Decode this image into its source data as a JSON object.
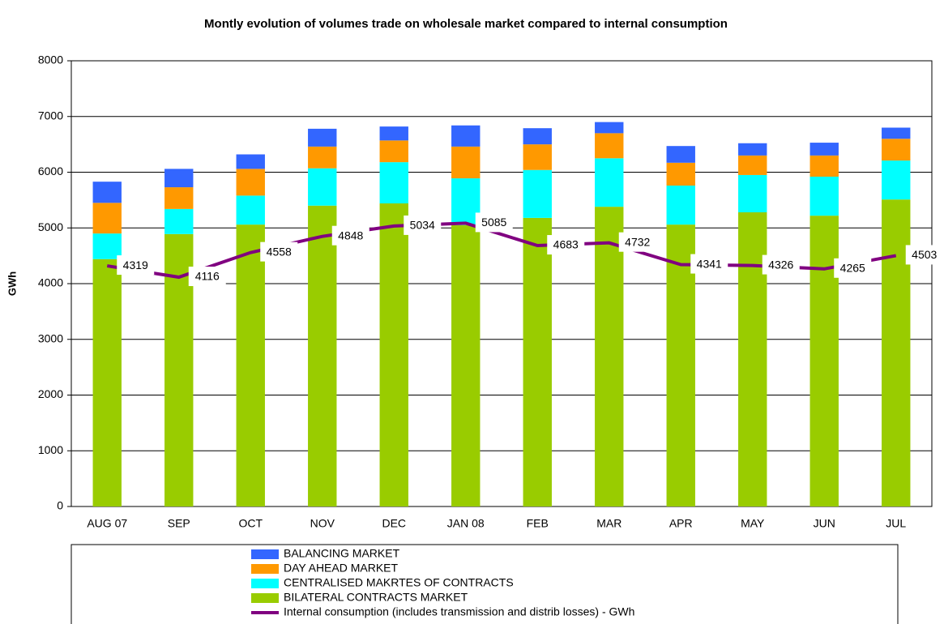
{
  "chart_data": {
    "type": "stacked-bar-line",
    "title": "Montly evolution of volumes trade on wholesale market compared to internal consumption",
    "y_label": "GWh",
    "categories": [
      "AUG 07",
      "SEP",
      "OCT",
      "NOV",
      "DEC",
      "JAN 08",
      "FEB",
      "MAR",
      "APR",
      "MAY",
      "JUN",
      "JUL"
    ],
    "series": [
      {
        "name": "BILATERAL CONTRACTS MARKET",
        "color": "#99cc00",
        "values": [
          4440,
          4890,
          5060,
          5400,
          5440,
          5050,
          5180,
          5380,
          5060,
          5280,
          5220,
          5510
        ]
      },
      {
        "name": "CENTRALISED MAKRTES OF CONTRACTS",
        "color": "#00ffff",
        "values": [
          460,
          450,
          520,
          670,
          740,
          840,
          860,
          870,
          700,
          670,
          700,
          700
        ]
      },
      {
        "name": "DAY AHEAD MARKET",
        "color": "#ff9900",
        "values": [
          550,
          390,
          480,
          390,
          390,
          570,
          460,
          450,
          410,
          350,
          380,
          390
        ]
      },
      {
        "name": "BALANCING MARKET",
        "color": "#3366ff",
        "values": [
          380,
          330,
          260,
          320,
          250,
          380,
          290,
          200,
          300,
          220,
          230,
          200
        ]
      }
    ],
    "line_series": {
      "name": "Internal consumption (includes transmission and distrib losses) - GWh",
      "color": "#800080",
      "label_color": "#993300",
      "values": [
        4319,
        4116,
        4558,
        4848,
        5034,
        5085,
        4683,
        4732,
        4341,
        4326,
        4265,
        4503
      ]
    },
    "ylim": [
      0,
      8000
    ],
    "yticks": [
      0,
      1000,
      2000,
      3000,
      4000,
      5000,
      6000,
      7000,
      8000
    ],
    "grid": true
  }
}
